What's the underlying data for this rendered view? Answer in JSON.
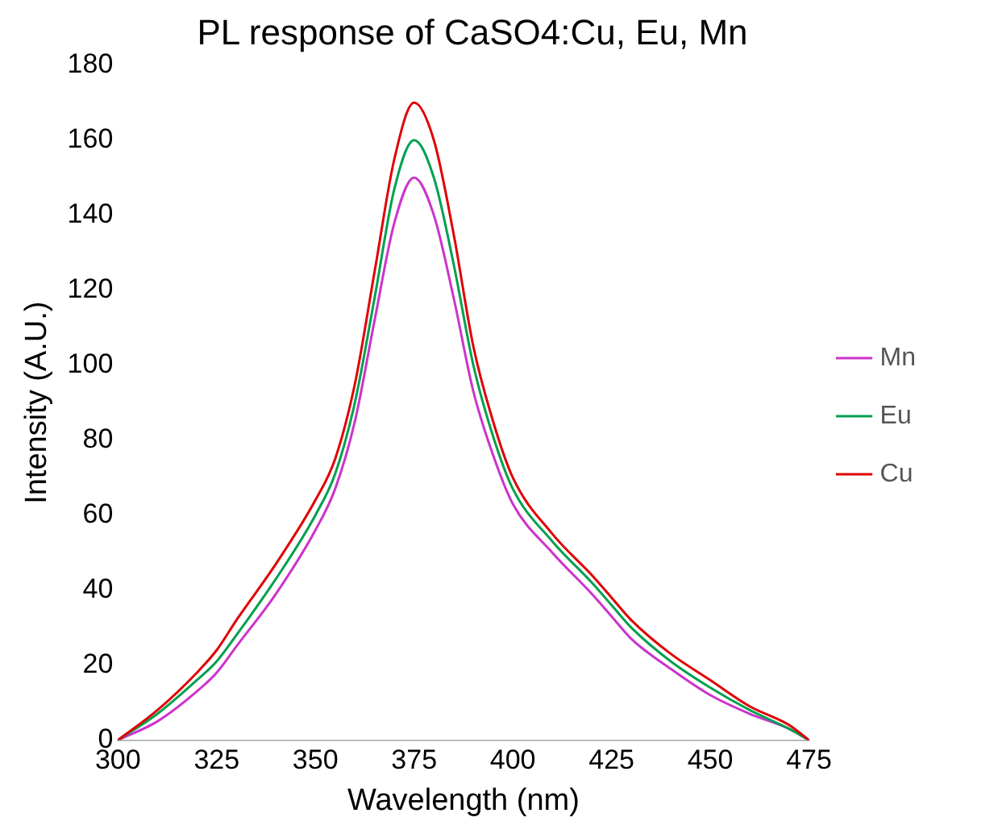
{
  "chart_data": {
    "type": "line",
    "title": "PL response of CaSO4:Cu, Eu, Mn",
    "xlabel": "Wavelength (nm)",
    "ylabel": "Intensity (A.U.)",
    "x": [
      300,
      310,
      320,
      325,
      330,
      340,
      350,
      355,
      360,
      365,
      370,
      375,
      380,
      385,
      390,
      395,
      400,
      410,
      420,
      425,
      430,
      440,
      450,
      460,
      470,
      475
    ],
    "series": [
      {
        "name": "Mn",
        "color": "#cc33cc",
        "values": [
          0,
          5,
          13,
          18,
          25,
          39,
          56,
          67,
          85,
          112,
          138,
          150,
          140,
          118,
          93,
          76,
          63,
          50,
          39,
          33,
          27,
          19,
          12,
          7,
          3,
          0
        ]
      },
      {
        "name": "Eu",
        "color": "#00a050",
        "values": [
          0,
          7,
          16,
          21,
          28,
          43,
          60,
          71,
          90,
          118,
          147,
          160,
          150,
          127,
          100,
          81,
          67,
          53,
          42,
          36,
          30,
          21,
          14,
          8,
          3,
          0
        ]
      },
      {
        "name": "Cu",
        "color": "#e00000",
        "values": [
          0,
          8,
          18,
          24,
          32,
          47,
          64,
          75,
          95,
          125,
          155,
          170,
          160,
          135,
          105,
          85,
          70,
          55,
          44,
          38,
          32,
          23,
          16,
          9,
          4,
          0
        ]
      }
    ],
    "xlim": [
      300,
      475
    ],
    "xticks": [
      300,
      325,
      350,
      375,
      400,
      425,
      450,
      475
    ],
    "ylim": [
      0,
      180
    ],
    "yticks": [
      0,
      20,
      40,
      60,
      80,
      100,
      120,
      140,
      160,
      180
    ],
    "grid": false,
    "legend": "right",
    "marker": "none",
    "line_style": "solid"
  }
}
